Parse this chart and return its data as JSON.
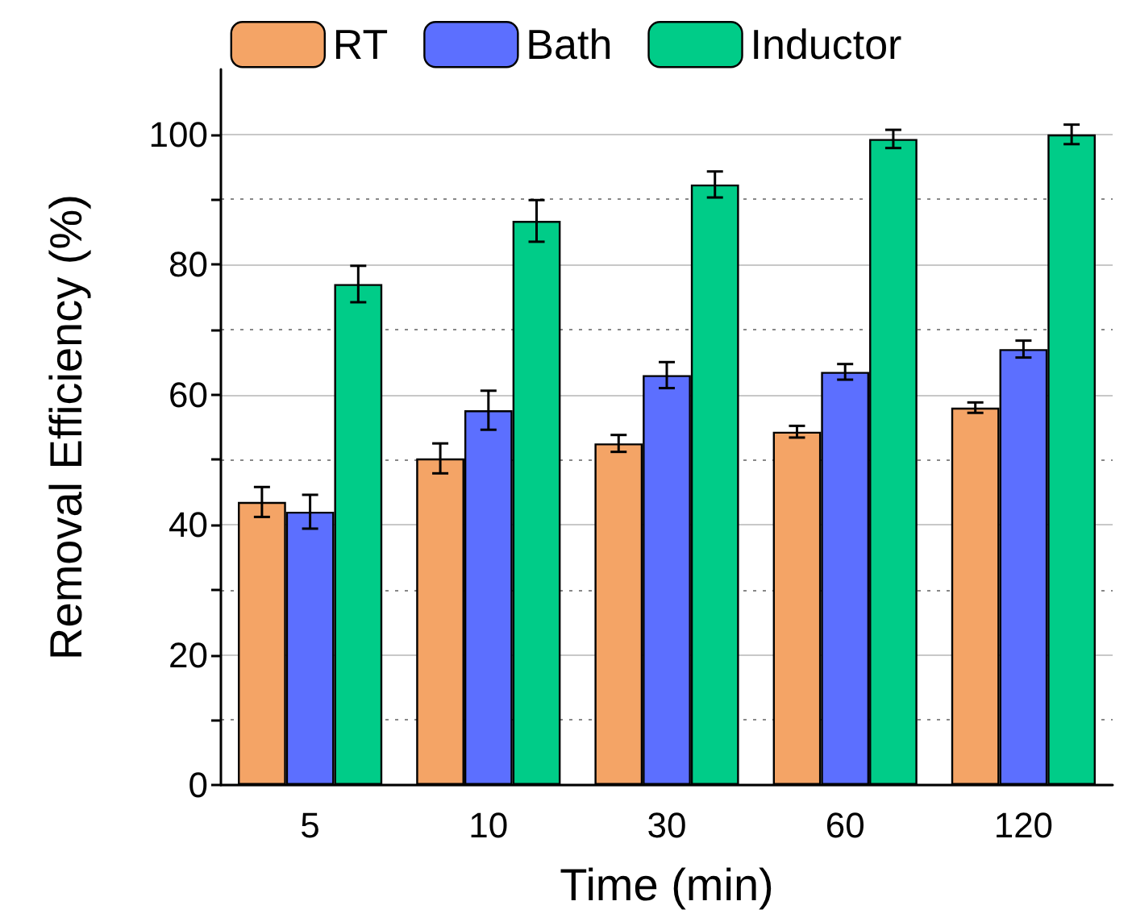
{
  "chart_data": {
    "type": "bar",
    "xlabel": "Time (min)",
    "ylabel": "Removal Efficiency (%)",
    "categories": [
      "5",
      "10",
      "30",
      "60",
      "120"
    ],
    "series": [
      {
        "name": "RT",
        "color": "#f4a466",
        "values": [
          43.5,
          50.2,
          52.5,
          54.3,
          58
        ],
        "errors": [
          2.3,
          2.3,
          1.3,
          0.9,
          0.8
        ]
      },
      {
        "name": "Bath",
        "color": "#5c6fff",
        "values": [
          42,
          57.6,
          63,
          63.5,
          67
        ],
        "errors": [
          2.6,
          3,
          2,
          1.2,
          1.3
        ]
      },
      {
        "name": "Inductor",
        "color": "#00cc88",
        "values": [
          77,
          86.7,
          92.3,
          99.3,
          100
        ],
        "errors": [
          2.8,
          3.2,
          2,
          1.4,
          1.5
        ]
      }
    ],
    "ylim": [
      0,
      110
    ],
    "yticks": [
      0,
      {
        "value": 10,
        "label": null
      },
      20,
      {
        "value": 30,
        "label": null
      },
      40,
      {
        "value": 50,
        "label": null
      },
      60,
      {
        "value": 70,
        "label": null
      },
      80,
      {
        "value": 90,
        "label": null
      },
      100
    ],
    "grid": "y",
    "legend": "top"
  }
}
